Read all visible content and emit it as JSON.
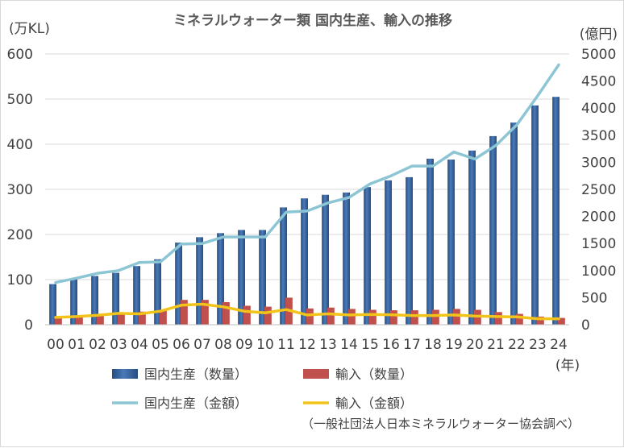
{
  "chart_data": {
    "type": "bar",
    "title": "ミネラルウォーター類 国内生産、輸入の推移",
    "y_left_unit": "(万KL)",
    "y_right_unit": "(億円)",
    "x_unit": "(年)",
    "source": "（一般社団法人日本ミネラルウォーター協会調べ）",
    "categories": [
      "00",
      "01",
      "02",
      "03",
      "04",
      "05",
      "06",
      "07",
      "08",
      "09",
      "10",
      "11",
      "12",
      "13",
      "14",
      "15",
      "16",
      "17",
      "18",
      "19",
      "20",
      "21",
      "22",
      "23",
      "24"
    ],
    "ylim_left": [
      0,
      600
    ],
    "ylim_right": [
      0,
      5000
    ],
    "y_left_ticks": [
      "0",
      "100",
      "200",
      "300",
      "400",
      "500",
      "600"
    ],
    "y_right_ticks": [
      "0",
      "500",
      "1000",
      "1500",
      "2000",
      "2500",
      "3000",
      "3500",
      "4000",
      "4500",
      "5000"
    ],
    "series": [
      {
        "name": "国内生産（数量）",
        "kind": "bar",
        "axis": "left",
        "color": "#2e5d95",
        "values": [
          90,
          102,
          108,
          115,
          130,
          145,
          182,
          194,
          203,
          210,
          210,
          260,
          280,
          288,
          293,
          305,
          320,
          327,
          368,
          366,
          386,
          418,
          448,
          486,
          505
        ]
      },
      {
        "name": "輸入（数量）",
        "kind": "bar",
        "axis": "left",
        "color": "#c0504d",
        "values": [
          16,
          18,
          20,
          24,
          29,
          33,
          55,
          55,
          50,
          42,
          40,
          60,
          36,
          38,
          35,
          33,
          32,
          32,
          33,
          35,
          33,
          28,
          24,
          18,
          15
        ]
      },
      {
        "name": "国内生産（金額）",
        "kind": "line",
        "axis": "right",
        "color": "#8cc5d4",
        "values": [
          780,
          860,
          950,
          1000,
          1150,
          1160,
          1490,
          1500,
          1620,
          1620,
          1620,
          2080,
          2100,
          2250,
          2350,
          2600,
          2750,
          2930,
          2930,
          3190,
          3060,
          3310,
          3690,
          4230,
          4800
        ]
      },
      {
        "name": "輸入（金額）",
        "kind": "line",
        "axis": "right",
        "color": "#f2c419",
        "values": [
          135,
          150,
          175,
          210,
          200,
          250,
          360,
          380,
          330,
          250,
          220,
          280,
          180,
          200,
          180,
          190,
          185,
          170,
          170,
          180,
          160,
          150,
          145,
          110,
          110
        ]
      }
    ],
    "legend_position": "bottom",
    "grid": "horizontal"
  }
}
